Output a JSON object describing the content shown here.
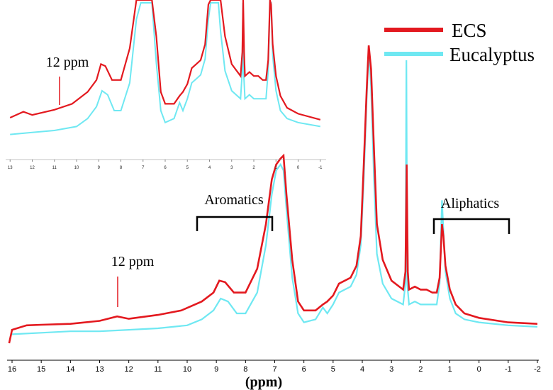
{
  "chart_data": {
    "type": "line",
    "title": "",
    "xlabel": "(ppm)",
    "ylabel": "",
    "xlim": [
      16,
      -2
    ],
    "x_reversed": true,
    "x_ticks": [
      "16",
      "15",
      "14",
      "13",
      "12",
      "11",
      "10",
      "9",
      "8",
      "7",
      "6",
      "5",
      "4",
      "3",
      "2",
      "1",
      "0",
      "-1",
      "-2"
    ],
    "legend": {
      "position": "top-right"
    },
    "series": [
      {
        "name": "ECS",
        "color": "#e3191f",
        "points": [
          [
            16.1,
            0.0
          ],
          [
            16.0,
            0.045
          ],
          [
            15.5,
            0.06
          ],
          [
            15,
            0.062
          ],
          [
            14,
            0.065
          ],
          [
            13,
            0.075
          ],
          [
            12.4,
            0.09
          ],
          [
            12,
            0.082
          ],
          [
            11,
            0.095
          ],
          [
            10.2,
            0.11
          ],
          [
            9.5,
            0.14
          ],
          [
            9.1,
            0.17
          ],
          [
            8.9,
            0.21
          ],
          [
            8.7,
            0.205
          ],
          [
            8.4,
            0.17
          ],
          [
            8.0,
            0.17
          ],
          [
            7.6,
            0.25
          ],
          [
            7.3,
            0.4
          ],
          [
            7.1,
            0.55
          ],
          [
            6.95,
            0.6
          ],
          [
            6.8,
            0.62
          ],
          [
            6.7,
            0.63
          ],
          [
            6.6,
            0.5
          ],
          [
            6.4,
            0.28
          ],
          [
            6.2,
            0.14
          ],
          [
            6.0,
            0.11
          ],
          [
            5.6,
            0.11
          ],
          [
            5.35,
            0.13
          ],
          [
            5.2,
            0.14
          ],
          [
            5.0,
            0.16
          ],
          [
            4.8,
            0.2
          ],
          [
            4.6,
            0.21
          ],
          [
            4.4,
            0.22
          ],
          [
            4.2,
            0.26
          ],
          [
            4.05,
            0.36
          ],
          [
            3.95,
            0.6
          ],
          [
            3.85,
            0.85
          ],
          [
            3.78,
            1.0
          ],
          [
            3.7,
            0.92
          ],
          [
            3.6,
            0.65
          ],
          [
            3.5,
            0.4
          ],
          [
            3.3,
            0.28
          ],
          [
            3.0,
            0.21
          ],
          [
            2.6,
            0.18
          ],
          [
            2.52,
            0.24
          ],
          [
            2.48,
            0.6
          ],
          [
            2.44,
            0.24
          ],
          [
            2.4,
            0.18
          ],
          [
            2.2,
            0.19
          ],
          [
            2.0,
            0.18
          ],
          [
            1.8,
            0.18
          ],
          [
            1.6,
            0.17
          ],
          [
            1.45,
            0.17
          ],
          [
            1.35,
            0.22
          ],
          [
            1.27,
            0.4
          ],
          [
            1.22,
            0.36
          ],
          [
            1.15,
            0.26
          ],
          [
            1.0,
            0.18
          ],
          [
            0.8,
            0.13
          ],
          [
            0.5,
            0.1
          ],
          [
            0,
            0.085
          ],
          [
            -1,
            0.07
          ],
          [
            -2,
            0.065
          ]
        ]
      },
      {
        "name": "Eucalyptus",
        "color": "#6fe8f2",
        "points": [
          [
            16.0,
            0.03
          ],
          [
            15,
            0.035
          ],
          [
            14,
            0.04
          ],
          [
            13,
            0.04
          ],
          [
            12,
            0.045
          ],
          [
            11,
            0.05
          ],
          [
            10,
            0.06
          ],
          [
            9.5,
            0.08
          ],
          [
            9.1,
            0.11
          ],
          [
            8.85,
            0.15
          ],
          [
            8.6,
            0.14
          ],
          [
            8.3,
            0.1
          ],
          [
            8.0,
            0.1
          ],
          [
            7.6,
            0.17
          ],
          [
            7.3,
            0.33
          ],
          [
            7.1,
            0.5
          ],
          [
            6.95,
            0.58
          ],
          [
            6.8,
            0.6
          ],
          [
            6.7,
            0.58
          ],
          [
            6.6,
            0.45
          ],
          [
            6.4,
            0.22
          ],
          [
            6.2,
            0.1
          ],
          [
            6.0,
            0.07
          ],
          [
            5.6,
            0.08
          ],
          [
            5.35,
            0.12
          ],
          [
            5.2,
            0.1
          ],
          [
            5.0,
            0.13
          ],
          [
            4.8,
            0.17
          ],
          [
            4.6,
            0.18
          ],
          [
            4.4,
            0.19
          ],
          [
            4.2,
            0.23
          ],
          [
            4.05,
            0.33
          ],
          [
            3.95,
            0.55
          ],
          [
            3.85,
            0.82
          ],
          [
            3.78,
            0.98
          ],
          [
            3.7,
            0.86
          ],
          [
            3.6,
            0.55
          ],
          [
            3.5,
            0.3
          ],
          [
            3.3,
            0.2
          ],
          [
            3.0,
            0.15
          ],
          [
            2.6,
            0.13
          ],
          [
            2.52,
            0.2
          ],
          [
            2.49,
            0.95
          ],
          [
            2.46,
            0.2
          ],
          [
            2.4,
            0.13
          ],
          [
            2.2,
            0.14
          ],
          [
            2.0,
            0.13
          ],
          [
            1.8,
            0.13
          ],
          [
            1.6,
            0.13
          ],
          [
            1.45,
            0.13
          ],
          [
            1.35,
            0.2
          ],
          [
            1.27,
            0.48
          ],
          [
            1.22,
            0.38
          ],
          [
            1.15,
            0.24
          ],
          [
            1.0,
            0.15
          ],
          [
            0.8,
            0.1
          ],
          [
            0.5,
            0.08
          ],
          [
            0,
            0.07
          ],
          [
            -1,
            0.06
          ],
          [
            -2,
            0.055
          ]
        ]
      }
    ],
    "annotations": [
      {
        "text": "12 ppm",
        "x": 12.0
      },
      {
        "text": "Aromatics",
        "x_range": [
          9.7,
          7.0
        ]
      },
      {
        "text": "Aliphatics",
        "x_range": [
          1.5,
          -1.0
        ]
      }
    ],
    "inset": {
      "annotation": "12 ppm",
      "x_ticks": [
        "13",
        "12",
        "11",
        "10",
        "9",
        "8",
        "7",
        "6",
        "5",
        "4",
        "3",
        "2",
        "1",
        "0",
        "-1"
      ]
    }
  }
}
